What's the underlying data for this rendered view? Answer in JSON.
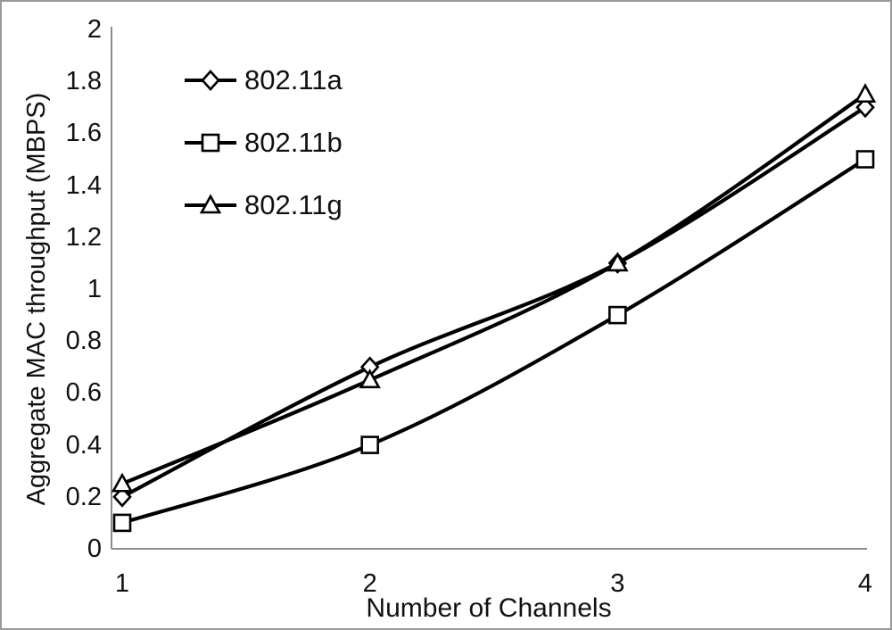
{
  "frame": {
    "border_color": "#9a9a9a",
    "background_color": "#ffffff"
  },
  "chart_data": {
    "type": "line",
    "title": "",
    "xlabel": "Number of Channels",
    "ylabel": "Aggregate MAC throughput (MBPS)",
    "x": [
      1,
      2,
      3,
      4
    ],
    "xtick_labels": [
      "1",
      "2",
      "3",
      "4"
    ],
    "ylim": [
      0,
      2
    ],
    "ytick_values": [
      0,
      0.2,
      0.4,
      0.6,
      0.8,
      1,
      1.2,
      1.4,
      1.6,
      1.8,
      2
    ],
    "ytick_labels": [
      "0",
      "0.2",
      "0.4",
      "0.6",
      "0.8",
      "1",
      "1.2",
      "1.4",
      "1.6",
      "1.8",
      "2"
    ],
    "grid": false,
    "legend_position": "inside-top-left",
    "axis_color": "#8c8c8c",
    "line_color": "#000000",
    "marker_fill": "#ffffff",
    "series": [
      {
        "name": "802.11a",
        "marker": "diamond",
        "values": [
          0.2,
          0.7,
          1.1,
          1.7
        ]
      },
      {
        "name": "802.11b",
        "marker": "square",
        "values": [
          0.1,
          0.4,
          0.9,
          1.5
        ]
      },
      {
        "name": "802.11g",
        "marker": "triangle",
        "values": [
          0.25,
          0.65,
          1.1,
          1.75
        ]
      }
    ]
  }
}
